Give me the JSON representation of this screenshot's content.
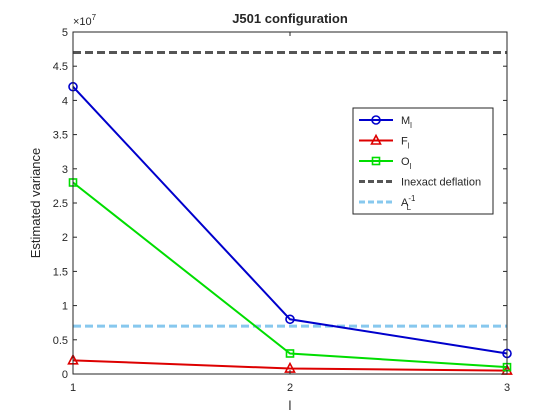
{
  "chart_data": {
    "type": "line",
    "title": "J501 configuration",
    "xlabel": "l",
    "ylabel": "Estimated variance",
    "y_exponent_label": "×10",
    "y_exponent_power": "7",
    "x": [
      1,
      2,
      3
    ],
    "xlim": [
      1,
      3
    ],
    "ylim": [
      0,
      5
    ],
    "xticks": [
      "1",
      "2",
      "3"
    ],
    "yticks": [
      "0",
      "0.5",
      "1",
      "1.5",
      "2",
      "2.5",
      "3",
      "3.5",
      "4",
      "4.5",
      "5"
    ],
    "y_tick_values": [
      0,
      0.5,
      1,
      1.5,
      2,
      2.5,
      3,
      3.5,
      4,
      4.5,
      5
    ],
    "legend_position": "top-right",
    "grid": false,
    "series": [
      {
        "name": "M",
        "subscript": "l",
        "superscript": "",
        "color": "#0000cc",
        "marker": "circle",
        "values": [
          4.2,
          0.8,
          0.3
        ]
      },
      {
        "name": "F",
        "subscript": "l",
        "superscript": "",
        "color": "#dd0000",
        "marker": "triangle",
        "values": [
          0.2,
          0.08,
          0.05
        ]
      },
      {
        "name": "O",
        "subscript": "l",
        "superscript": "",
        "color": "#00dd00",
        "marker": "square",
        "values": [
          2.8,
          0.3,
          0.1
        ]
      }
    ],
    "reference_lines": [
      {
        "name": "Inexact deflation",
        "subscript": "",
        "superscript": "",
        "color": "#555555",
        "value": 4.7
      },
      {
        "name": "A",
        "subscript": "L",
        "superscript": "-1",
        "color": "#87c8ee",
        "value": 0.7
      }
    ]
  }
}
